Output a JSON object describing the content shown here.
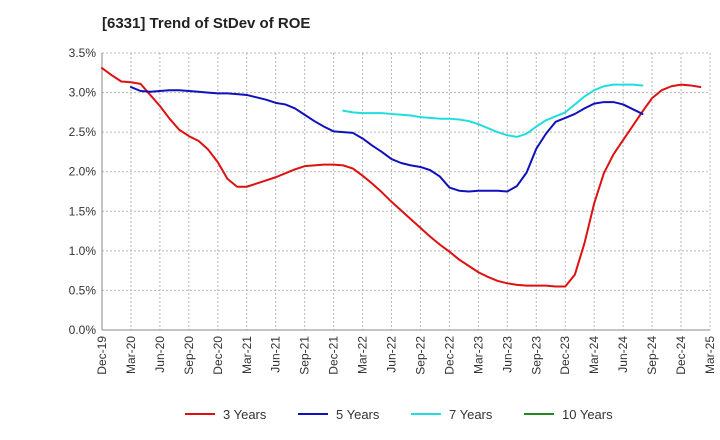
{
  "chart_data": {
    "type": "line",
    "title": "[6331]  Trend of StDev of ROE",
    "xlabel": "",
    "ylabel": "",
    "x_tick_labels": [
      "Dec-19",
      "Mar-20",
      "Jun-20",
      "Sep-20",
      "Dec-20",
      "Mar-21",
      "Jun-21",
      "Sep-21",
      "Dec-21",
      "Mar-22",
      "Jun-22",
      "Sep-22",
      "Dec-22",
      "Mar-23",
      "Jun-23",
      "Sep-23",
      "Dec-23",
      "Mar-24",
      "Jun-24",
      "Sep-24",
      "Dec-24",
      "Mar-25"
    ],
    "y_tick_labels": [
      "0.0%",
      "0.5%",
      "1.0%",
      "1.5%",
      "2.0%",
      "2.5%",
      "3.0%",
      "3.5%"
    ],
    "ylim": [
      0,
      3.5
    ],
    "y_unit": "%",
    "grid": "dashed horizontal and vertical",
    "legend_position": "bottom",
    "series": [
      {
        "name": "3 Years",
        "color": "#dd1111",
        "values": [
          3.31,
          3.22,
          3.14,
          3.13,
          3.11,
          2.97,
          2.83,
          2.67,
          2.53,
          2.45,
          2.39,
          2.28,
          2.12,
          1.91,
          1.81,
          1.81,
          1.85,
          1.89,
          1.93,
          1.98,
          2.03,
          2.07,
          2.08,
          2.09,
          2.09,
          2.08,
          2.04,
          1.95,
          1.85,
          1.74,
          1.62,
          1.51,
          1.4,
          1.29,
          1.18,
          1.08,
          0.99,
          0.89,
          0.81,
          0.73,
          0.67,
          0.62,
          0.59,
          0.57,
          0.56,
          0.56,
          0.56,
          0.55,
          0.55,
          0.7,
          1.1,
          1.6,
          1.98,
          2.22,
          2.4,
          2.58,
          2.76,
          2.93,
          3.03,
          3.08,
          3.1,
          3.09,
          3.07
        ]
      },
      {
        "name": "5 Years",
        "color": "#1111bb",
        "values": [
          null,
          null,
          null,
          3.07,
          3.02,
          3.01,
          3.02,
          3.03,
          3.03,
          3.02,
          3.01,
          3.0,
          2.99,
          2.99,
          2.98,
          2.97,
          2.94,
          2.91,
          2.87,
          2.85,
          2.8,
          2.72,
          2.64,
          2.57,
          2.51,
          2.5,
          2.49,
          2.42,
          2.33,
          2.25,
          2.16,
          2.11,
          2.08,
          2.06,
          2.02,
          1.94,
          1.8,
          1.76,
          1.75,
          1.76,
          1.76,
          1.76,
          1.75,
          1.82,
          1.99,
          2.29,
          2.48,
          2.63,
          2.68,
          2.73,
          2.8,
          2.86,
          2.88,
          2.88,
          2.85,
          2.79,
          2.73
        ]
      },
      {
        "name": "7 Years",
        "color": "#22dddd",
        "values": [
          null,
          null,
          null,
          null,
          null,
          null,
          null,
          null,
          null,
          null,
          null,
          null,
          null,
          null,
          null,
          null,
          null,
          null,
          null,
          null,
          null,
          null,
          null,
          null,
          null,
          2.77,
          2.75,
          2.74,
          2.74,
          2.74,
          2.73,
          2.72,
          2.71,
          2.69,
          2.68,
          2.67,
          2.67,
          2.66,
          2.64,
          2.6,
          2.55,
          2.5,
          2.46,
          2.44,
          2.48,
          2.57,
          2.65,
          2.7,
          2.75,
          2.85,
          2.95,
          3.03,
          3.08,
          3.1,
          3.1,
          3.1,
          3.09
        ]
      },
      {
        "name": "10 Years",
        "color": "#228822",
        "values": []
      }
    ]
  }
}
